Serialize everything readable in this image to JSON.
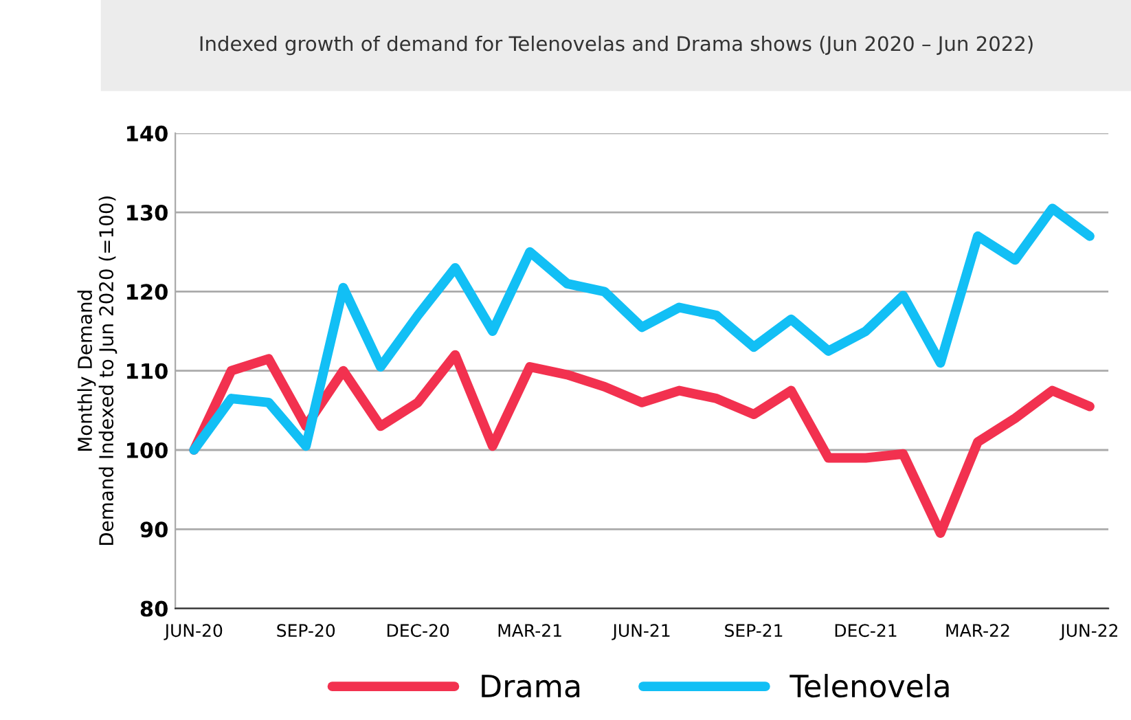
{
  "chart_data": {
    "type": "line",
    "title": "Indexed growth of demand for Telenovelas and Drama shows (Jun 2020 – Jun 2022)",
    "ylabel": "Monthly Demand\nDemand Indexed to Jun 2020 (=100)",
    "categories": [
      "JUN-20",
      null,
      null,
      "SEP-20",
      null,
      null,
      "DEC-20",
      null,
      null,
      "MAR-21",
      null,
      null,
      "JUN-21",
      null,
      null,
      "SEP-21",
      null,
      null,
      "DEC-21",
      null,
      null,
      "MAR-22",
      null,
      null,
      "JUN-22"
    ],
    "series": [
      {
        "name": "Drama",
        "color": "#f2314f",
        "values": [
          100,
          110,
          111.5,
          103,
          110,
          103,
          106,
          112,
          100.5,
          110.5,
          109.5,
          108,
          106,
          107.5,
          106.5,
          104.5,
          107.5,
          99,
          99,
          99.5,
          89.5,
          101,
          104,
          107.5,
          105.5
        ]
      },
      {
        "name": "Telenovela",
        "color": "#12bff5",
        "values": [
          100,
          106.5,
          106,
          100.5,
          120.5,
          110.5,
          117,
          123,
          115,
          125,
          121,
          120,
          115.5,
          118,
          117,
          113,
          116.5,
          112.5,
          115,
          119.5,
          111,
          127,
          124,
          130.5,
          127
        ]
      }
    ],
    "ylim": [
      80,
      140
    ],
    "yticks": [
      80,
      90,
      100,
      110,
      120,
      130,
      140
    ],
    "grid": "y",
    "legend": "bottom",
    "marker": "none",
    "line_style": "solid"
  }
}
